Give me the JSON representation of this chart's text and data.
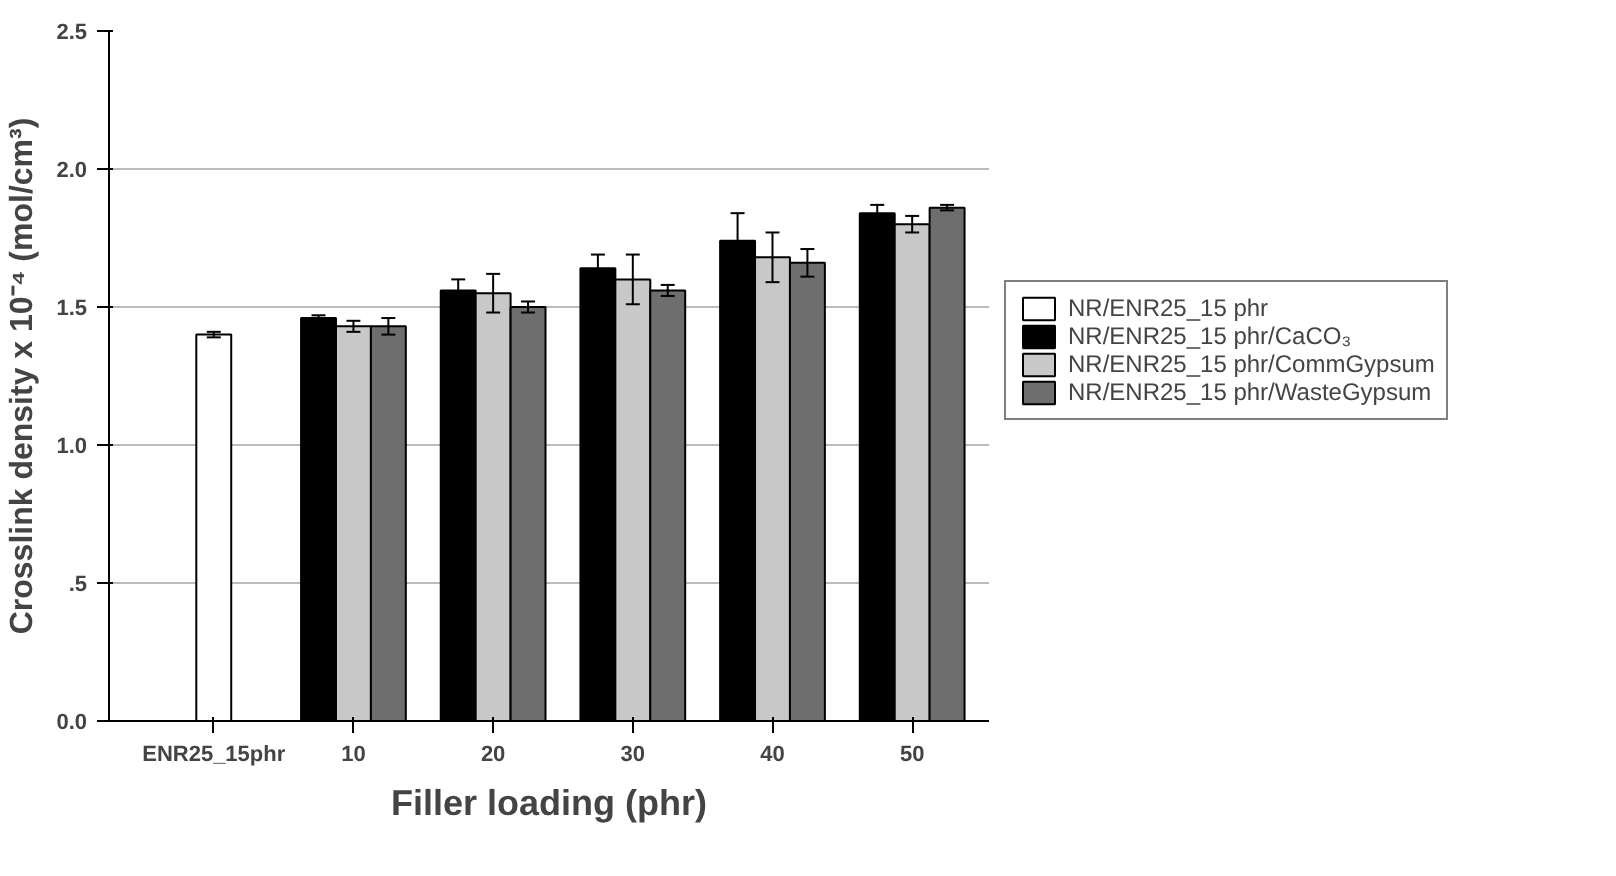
{
  "chart_data": {
    "type": "bar",
    "xlabel": "Filler loading (phr)",
    "ylabel": "Crosslink density x 10⁻⁴ (mol/cm³)",
    "categories": [
      "ENR25_15phr",
      "10",
      "20",
      "30",
      "40",
      "50"
    ],
    "series": [
      {
        "name": "NR/ENR25_15 phr",
        "color": "#ffffff",
        "values": [
          1.4,
          null,
          null,
          null,
          null,
          null
        ],
        "errors": [
          0.01,
          null,
          null,
          null,
          null,
          null
        ]
      },
      {
        "name": "NR/ENR25_15 phr/CaCO₃",
        "color": "#000000",
        "values": [
          null,
          1.46,
          1.56,
          1.64,
          1.74,
          1.84
        ],
        "errors": [
          null,
          0.01,
          0.04,
          0.05,
          0.1,
          0.03
        ]
      },
      {
        "name": "NR/ENR25_15 phr/CommGypsum",
        "color": "#c8c8c8",
        "values": [
          null,
          1.43,
          1.55,
          1.6,
          1.68,
          1.8
        ],
        "errors": [
          null,
          0.02,
          0.07,
          0.09,
          0.09,
          0.03
        ]
      },
      {
        "name": "NR/ENR25_15 phr/WasteGypsum",
        "color": "#6e6e6e",
        "values": [
          null,
          1.43,
          1.5,
          1.56,
          1.66,
          1.86
        ],
        "errors": [
          null,
          0.03,
          0.02,
          0.02,
          0.05,
          0.01
        ]
      }
    ],
    "ylim": [
      0,
      2.5
    ],
    "yticks": [
      {
        "value": 0,
        "label": "0.0"
      },
      {
        "value": 0.5,
        "label": ".5"
      },
      {
        "value": 1.0,
        "label": "1.0"
      },
      {
        "value": 1.5,
        "label": "1.5"
      },
      {
        "value": 2.0,
        "label": "2.0"
      },
      {
        "value": 2.5,
        "label": "2.5"
      }
    ],
    "grid": "y",
    "legend": "right"
  }
}
